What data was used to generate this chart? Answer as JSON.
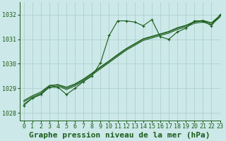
{
  "title": "Graphe pression niveau de la mer (hPa)",
  "bg_color": "#cce8e8",
  "grid_color": "#aacccc",
  "line_color": "#1a5c1a",
  "xlim": [
    -0.5,
    23
  ],
  "ylim": [
    1027.7,
    1032.5
  ],
  "yticks": [
    1028,
    1029,
    1030,
    1031,
    1032
  ],
  "xticks": [
    0,
    1,
    2,
    3,
    4,
    5,
    6,
    7,
    8,
    9,
    10,
    11,
    12,
    13,
    14,
    15,
    16,
    17,
    18,
    19,
    20,
    21,
    22,
    23
  ],
  "series_smooth": [
    [
      1028.35,
      1028.6,
      1028.75,
      1029.05,
      1029.1,
      1028.95,
      1029.1,
      1029.3,
      1029.55,
      1029.8,
      1030.05,
      1030.3,
      1030.55,
      1030.75,
      1030.95,
      1031.05,
      1031.15,
      1031.25,
      1031.4,
      1031.5,
      1031.65,
      1031.7,
      1031.6,
      1031.9
    ],
    [
      1028.45,
      1028.65,
      1028.8,
      1029.1,
      1029.15,
      1029.0,
      1029.15,
      1029.35,
      1029.6,
      1029.85,
      1030.1,
      1030.35,
      1030.6,
      1030.8,
      1031.0,
      1031.1,
      1031.2,
      1031.3,
      1031.45,
      1031.55,
      1031.7,
      1031.75,
      1031.65,
      1031.95
    ],
    [
      1028.5,
      1028.7,
      1028.85,
      1029.12,
      1029.15,
      1029.05,
      1029.18,
      1029.38,
      1029.62,
      1029.88,
      1030.12,
      1030.38,
      1030.62,
      1030.82,
      1031.02,
      1031.12,
      1031.22,
      1031.32,
      1031.47,
      1031.57,
      1031.72,
      1031.77,
      1031.67,
      1031.97
    ]
  ],
  "series_noisy": [
    1028.3,
    1028.6,
    1028.75,
    1029.05,
    1029.05,
    1028.75,
    1029.0,
    1029.28,
    1029.5,
    1030.05,
    1031.15,
    1031.75,
    1031.75,
    1031.7,
    1031.55,
    1031.8,
    1031.1,
    1031.0,
    1031.3,
    1031.45,
    1031.75,
    1031.75,
    1031.55,
    1032.0
  ],
  "title_fontsize": 8,
  "tick_fontsize": 6
}
